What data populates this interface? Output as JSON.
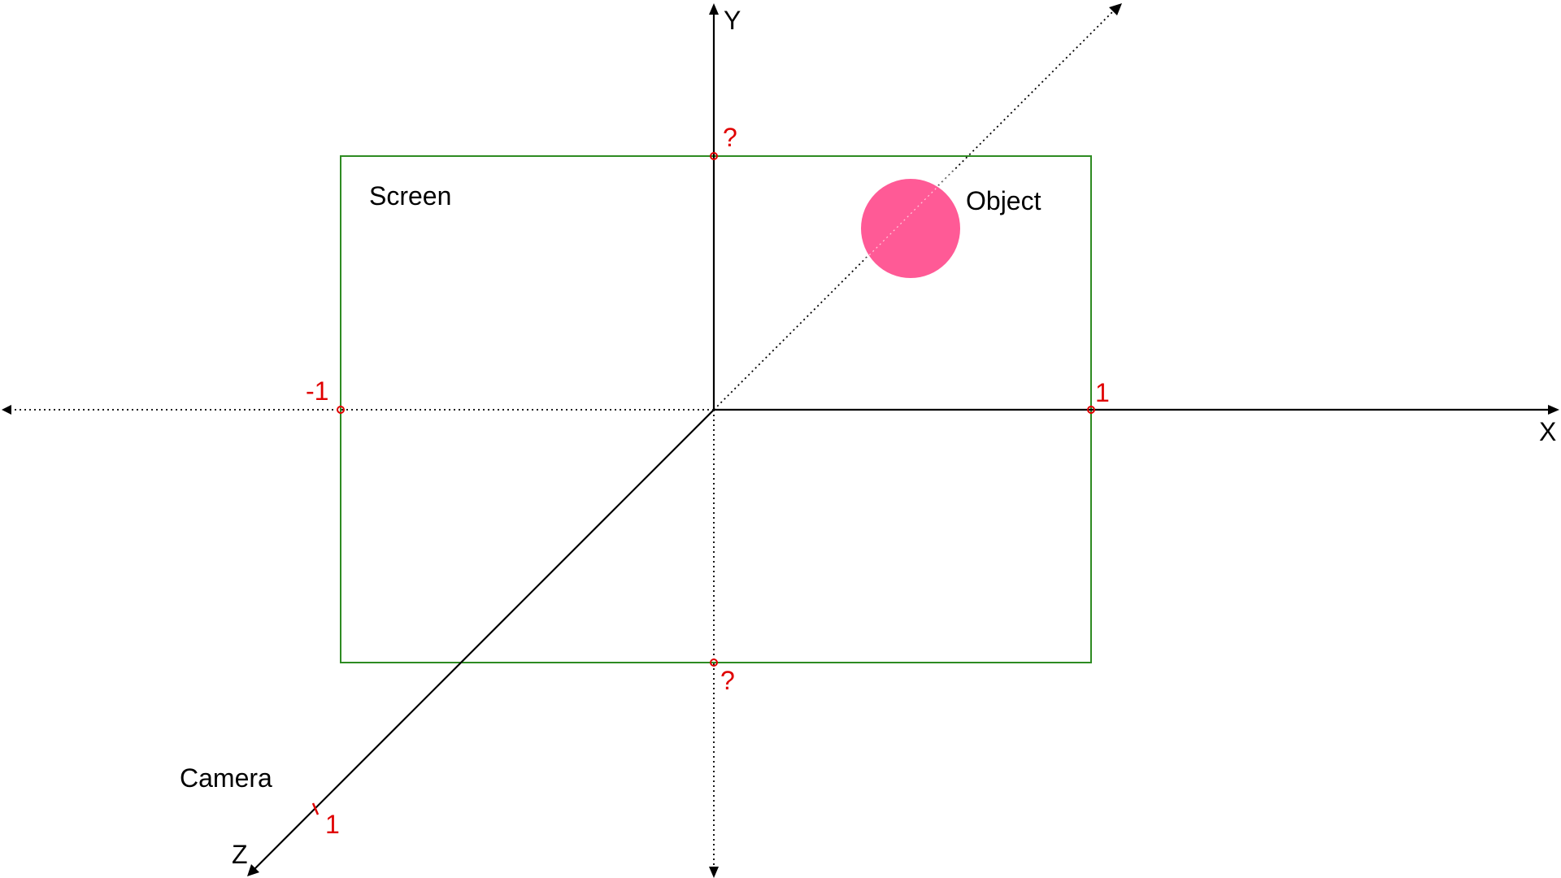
{
  "axes": {
    "x_label": "X",
    "y_label": "Y",
    "z_label": "Z"
  },
  "labels": {
    "screen": "Screen",
    "object": "Object",
    "camera": "Camera"
  },
  "marks": {
    "x_negative": "-1",
    "x_positive": "1",
    "y_top": "?",
    "y_bottom": "?",
    "z_camera": "1"
  },
  "colors": {
    "screen_border": "#2e8b22",
    "object_fill": "#ff5a96",
    "mark_text": "#e00000",
    "axis": "#000000"
  }
}
